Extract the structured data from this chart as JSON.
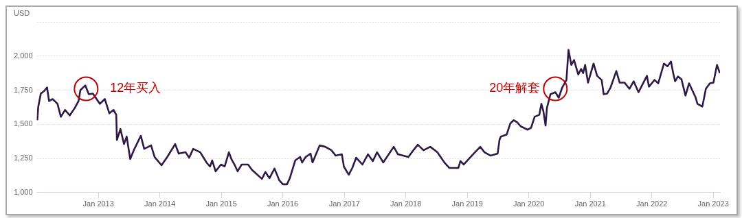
{
  "chart_data": {
    "type": "line",
    "ylabel": "USD",
    "x": [
      "2012-01-04",
      "2012-01-10",
      "2012-01-25",
      "2012-02-15",
      "2012-03-02",
      "2012-03-14",
      "2012-04-04",
      "2012-05-03",
      "2012-05-23",
      "2012-06-17",
      "2012-07-15",
      "2012-08-14",
      "2012-09-05",
      "2012-09-16",
      "2012-10-15",
      "2012-11-05",
      "2012-11-29",
      "2013-01-10",
      "2013-02-08",
      "2013-03-07",
      "2013-04-01",
      "2013-04-17",
      "2013-04-21",
      "2013-05-12",
      "2013-06-02",
      "2013-06-18",
      "2013-07-09",
      "2013-08-03",
      "2013-09-10",
      "2013-09-30",
      "2013-11-10",
      "2013-12-01",
      "2014-01-11",
      "2014-02-14",
      "2014-04-02",
      "2014-04-23",
      "2014-06-03",
      "2014-06-24",
      "2014-07-18",
      "2014-08-29",
      "2014-10-05",
      "2014-10-26",
      "2014-11-08",
      "2014-11-28",
      "2014-12-30",
      "2015-01-21",
      "2015-02-15",
      "2015-03-02",
      "2015-03-22",
      "2015-04-08",
      "2015-05-02",
      "2015-06-09",
      "2015-07-03",
      "2015-08-30",
      "2015-09-20",
      "2015-10-14",
      "2015-11-13",
      "2015-12-11",
      "2016-01-02",
      "2016-01-26",
      "2016-02-12",
      "2016-03-15",
      "2016-04-13",
      "2016-04-25",
      "2016-05-16",
      "2016-06-14",
      "2016-06-26",
      "2016-08-07",
      "2016-09-09",
      "2016-10-16",
      "2016-11-10",
      "2016-12-17",
      "2016-12-29",
      "2017-01-27",
      "2017-02-17",
      "2017-03-12",
      "2017-04-18",
      "2017-05-21",
      "2017-06-19",
      "2017-07-14",
      "2017-08-20",
      "2017-10-21",
      "2017-11-15",
      "2018-01-16",
      "2018-02-15",
      "2018-03-13",
      "2018-04-16",
      "2018-05-26",
      "2018-07-07",
      "2018-08-18",
      "2018-09-16",
      "2018-11-09",
      "2018-11-21",
      "2018-12-11",
      "2019-02-08",
      "2019-03-19",
      "2019-04-13",
      "2019-05-20",
      "2019-06-30",
      "2019-07-12",
      "2019-07-20",
      "2019-08-23",
      "2019-09-13",
      "2019-10-04",
      "2019-10-24",
      "2019-11-14",
      "2019-12-25",
      "2020-01-15",
      "2020-02-05",
      "2020-03-04",
      "2020-03-16",
      "2020-03-28",
      "2020-04-10",
      "2020-04-18",
      "2020-05-09",
      "2020-06-07",
      "2020-06-27",
      "2020-07-18",
      "2020-08-12",
      "2020-08-24",
      "2020-09-10",
      "2020-09-26",
      "2020-10-21",
      "2020-11-07",
      "2020-11-19",
      "2020-12-01",
      "2020-12-18",
      "2021-01-20",
      "2021-02-10",
      "2021-03-09",
      "2021-03-21",
      "2021-04-11",
      "2021-05-01",
      "2021-06-04",
      "2021-06-24",
      "2021-07-23",
      "2021-08-21",
      "2021-09-15",
      "2021-10-14",
      "2021-11-12",
      "2021-12-03",
      "2021-12-15",
      "2022-01-17",
      "2022-02-08",
      "2022-03-14",
      "2022-04-04",
      "2022-04-25",
      "2022-05-07",
      "2022-05-19",
      "2022-06-05",
      "2022-06-26",
      "2022-07-20",
      "2022-08-10",
      "2022-09-17",
      "2022-09-29",
      "2022-10-28",
      "2022-11-18",
      "2022-12-12",
      "2023-01-02",
      "2023-01-23",
      "2023-02-09"
    ],
    "series": [
      {
        "color": "#2e1a47",
        "values": [
          1530,
          1630,
          1725,
          1745,
          1770,
          1670,
          1685,
          1650,
          1555,
          1605,
          1565,
          1620,
          1670,
          1750,
          1785,
          1720,
          1725,
          1650,
          1685,
          1580,
          1605,
          1570,
          1385,
          1465,
          1355,
          1410,
          1245,
          1320,
          1415,
          1320,
          1345,
          1260,
          1200,
          1260,
          1355,
          1285,
          1295,
          1255,
          1320,
          1295,
          1220,
          1190,
          1235,
          1155,
          1205,
          1190,
          1295,
          1245,
          1200,
          1155,
          1205,
          1205,
          1165,
          1100,
          1150,
          1105,
          1175,
          1090,
          1060,
          1060,
          1105,
          1235,
          1260,
          1220,
          1260,
          1285,
          1220,
          1345,
          1335,
          1310,
          1270,
          1280,
          1190,
          1130,
          1180,
          1255,
          1205,
          1280,
          1230,
          1295,
          1220,
          1335,
          1280,
          1260,
          1310,
          1350,
          1310,
          1335,
          1295,
          1220,
          1180,
          1180,
          1230,
          1205,
          1285,
          1335,
          1295,
          1270,
          1285,
          1390,
          1410,
          1425,
          1505,
          1530,
          1515,
          1485,
          1460,
          1475,
          1555,
          1570,
          1650,
          1595,
          1490,
          1620,
          1720,
          1735,
          1695,
          1770,
          1825,
          2045,
          1935,
          1970,
          1865,
          1905,
          1875,
          1935,
          1805,
          1945,
          1855,
          1825,
          1720,
          1725,
          1770,
          1890,
          1805,
          1805,
          1760,
          1815,
          1735,
          1805,
          1855,
          1775,
          1825,
          1800,
          1945,
          1925,
          1960,
          1880,
          1815,
          1850,
          1830,
          1710,
          1800,
          1700,
          1650,
          1630,
          1760,
          1800,
          1805,
          1935,
          1875
        ]
      }
    ],
    "xlim": [
      "2012-01-01",
      "2023-02-10"
    ],
    "xticks": [
      {
        "value": "2013-01-01",
        "label": "Jan 2013"
      },
      {
        "value": "2014-01-01",
        "label": "Jan 2014"
      },
      {
        "value": "2015-01-01",
        "label": "Jan 2015"
      },
      {
        "value": "2016-01-01",
        "label": "Jan 2016"
      },
      {
        "value": "2017-01-01",
        "label": "Jan 2017"
      },
      {
        "value": "2018-01-01",
        "label": "Jan 2018"
      },
      {
        "value": "2019-01-01",
        "label": "Jan 2019"
      },
      {
        "value": "2020-01-01",
        "label": "Jan 2020"
      },
      {
        "value": "2021-01-01",
        "label": "Jan 2021"
      },
      {
        "value": "2022-01-01",
        "label": "Jan 2022"
      },
      {
        "value": "2023-01-01",
        "label": "Jan 2023"
      }
    ],
    "ylim": [
      1000,
      2250
    ],
    "yticks": [
      {
        "value": 1000,
        "label": "1,000"
      },
      {
        "value": 1250,
        "label": "1,250"
      },
      {
        "value": 1500,
        "label": "1,500"
      },
      {
        "value": 1750,
        "label": "1,750"
      },
      {
        "value": 2000,
        "label": "2,000"
      },
      {
        "value": 2250,
        "label": null
      }
    ],
    "grid": "y",
    "annotations": [
      {
        "text": "12年买入",
        "x": "2012-10-20",
        "y": 1760
      },
      {
        "text": "20年解套",
        "x": "2020-06-07",
        "y": 1760
      }
    ]
  }
}
